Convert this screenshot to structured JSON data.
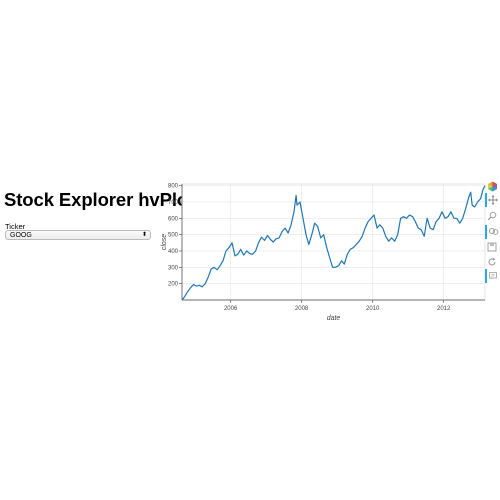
{
  "header": {
    "title": "Stock Explorer hvPlot"
  },
  "ticker": {
    "label": "Ticker",
    "value": "GOOG",
    "arrow_glyph": "⬍"
  },
  "toolbar": {
    "tools": [
      {
        "name": "bokeh-logo-icon",
        "interactable": false
      },
      {
        "name": "pan-tool-icon",
        "interactable": true,
        "active": true
      },
      {
        "name": "box-zoom-tool-icon",
        "interactable": true
      },
      {
        "name": "wheel-zoom-tool-icon",
        "interactable": true,
        "active": true
      },
      {
        "name": "save-tool-icon",
        "interactable": true
      },
      {
        "name": "reset-tool-icon",
        "interactable": true
      },
      {
        "name": "hover-tool-icon",
        "interactable": true,
        "active": true
      }
    ],
    "accent_color": "#26aae1"
  },
  "chart_data": {
    "type": "line",
    "xlabel": "date",
    "ylabel": "close",
    "x_ticks": [
      "2006",
      "2008",
      "2010",
      "2012"
    ],
    "y_ticks": [
      200,
      300,
      400,
      500,
      600,
      700,
      800
    ],
    "xlim": [
      "2004-08-19",
      "2013-03-01"
    ],
    "ylim": [
      100,
      810
    ],
    "grid": true,
    "line_color": "#1f77b4",
    "series": [
      {
        "values": [
          [
            "2004-08-19",
            100
          ],
          [
            "2004-09-15",
            120
          ],
          [
            "2004-10-15",
            150
          ],
          [
            "2004-11-15",
            175
          ],
          [
            "2004-12-15",
            195
          ],
          [
            "2005-01-15",
            185
          ],
          [
            "2005-02-15",
            190
          ],
          [
            "2005-03-15",
            180
          ],
          [
            "2005-04-15",
            200
          ],
          [
            "2005-05-15",
            240
          ],
          [
            "2005-06-15",
            290
          ],
          [
            "2005-07-15",
            300
          ],
          [
            "2005-08-15",
            285
          ],
          [
            "2005-09-15",
            310
          ],
          [
            "2005-10-15",
            340
          ],
          [
            "2005-11-15",
            400
          ],
          [
            "2005-12-15",
            420
          ],
          [
            "2006-01-15",
            450
          ],
          [
            "2006-02-15",
            370
          ],
          [
            "2006-03-15",
            380
          ],
          [
            "2006-04-15",
            410
          ],
          [
            "2006-05-15",
            375
          ],
          [
            "2006-06-15",
            400
          ],
          [
            "2006-07-15",
            385
          ],
          [
            "2006-08-15",
            380
          ],
          [
            "2006-09-15",
            400
          ],
          [
            "2006-10-15",
            450
          ],
          [
            "2006-11-15",
            485
          ],
          [
            "2006-12-15",
            465
          ],
          [
            "2007-01-15",
            495
          ],
          [
            "2007-02-15",
            470
          ],
          [
            "2007-03-15",
            455
          ],
          [
            "2007-04-15",
            475
          ],
          [
            "2007-05-15",
            480
          ],
          [
            "2007-06-15",
            520
          ],
          [
            "2007-07-15",
            540
          ],
          [
            "2007-08-15",
            510
          ],
          [
            "2007-09-15",
            560
          ],
          [
            "2007-10-15",
            640
          ],
          [
            "2007-11-05",
            740
          ],
          [
            "2007-11-15",
            680
          ],
          [
            "2007-12-15",
            700
          ],
          [
            "2008-01-15",
            600
          ],
          [
            "2008-02-15",
            500
          ],
          [
            "2008-03-15",
            440
          ],
          [
            "2008-04-15",
            500
          ],
          [
            "2008-05-15",
            570
          ],
          [
            "2008-06-15",
            550
          ],
          [
            "2008-07-15",
            480
          ],
          [
            "2008-08-15",
            500
          ],
          [
            "2008-09-15",
            420
          ],
          [
            "2008-10-15",
            360
          ],
          [
            "2008-11-15",
            300
          ],
          [
            "2008-12-15",
            300
          ],
          [
            "2009-01-15",
            310
          ],
          [
            "2009-02-15",
            340
          ],
          [
            "2009-03-15",
            320
          ],
          [
            "2009-04-15",
            380
          ],
          [
            "2009-05-15",
            410
          ],
          [
            "2009-06-15",
            420
          ],
          [
            "2009-07-15",
            440
          ],
          [
            "2009-08-15",
            460
          ],
          [
            "2009-09-15",
            490
          ],
          [
            "2009-10-15",
            540
          ],
          [
            "2009-11-15",
            580
          ],
          [
            "2009-12-15",
            600
          ],
          [
            "2010-01-15",
            620
          ],
          [
            "2010-02-15",
            540
          ],
          [
            "2010-03-15",
            560
          ],
          [
            "2010-04-15",
            540
          ],
          [
            "2010-05-15",
            490
          ],
          [
            "2010-06-15",
            460
          ],
          [
            "2010-07-15",
            480
          ],
          [
            "2010-08-15",
            460
          ],
          [
            "2010-09-15",
            500
          ],
          [
            "2010-10-15",
            600
          ],
          [
            "2010-11-15",
            610
          ],
          [
            "2010-12-15",
            600
          ],
          [
            "2011-01-15",
            620
          ],
          [
            "2011-02-15",
            610
          ],
          [
            "2011-03-15",
            580
          ],
          [
            "2011-04-15",
            540
          ],
          [
            "2011-05-15",
            530
          ],
          [
            "2011-06-15",
            490
          ],
          [
            "2011-07-15",
            600
          ],
          [
            "2011-08-15",
            540
          ],
          [
            "2011-09-15",
            530
          ],
          [
            "2011-10-15",
            580
          ],
          [
            "2011-11-15",
            600
          ],
          [
            "2011-12-15",
            640
          ],
          [
            "2012-01-15",
            600
          ],
          [
            "2012-02-15",
            610
          ],
          [
            "2012-03-15",
            640
          ],
          [
            "2012-04-15",
            600
          ],
          [
            "2012-05-15",
            600
          ],
          [
            "2012-06-15",
            570
          ],
          [
            "2012-07-15",
            600
          ],
          [
            "2012-08-15",
            660
          ],
          [
            "2012-09-15",
            730
          ],
          [
            "2012-10-05",
            760
          ],
          [
            "2012-10-20",
            680
          ],
          [
            "2012-11-15",
            670
          ],
          [
            "2012-12-15",
            700
          ],
          [
            "2013-01-15",
            720
          ],
          [
            "2013-02-10",
            780
          ],
          [
            "2013-03-01",
            800
          ]
        ]
      }
    ]
  }
}
